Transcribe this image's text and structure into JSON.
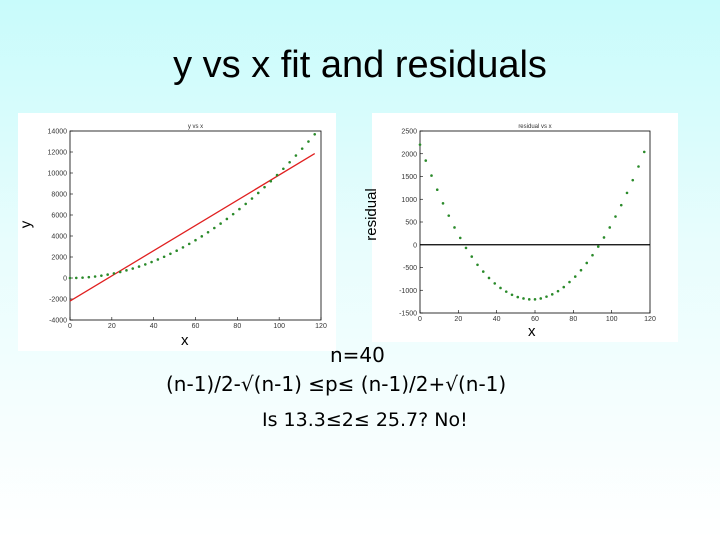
{
  "slide": {
    "title": "y vs x fit  and residuals",
    "lines": {
      "n": "n=40",
      "bounds": "(n-1)/2-√(n-1) ≤p≤ (n-1)/2+√(n-1)",
      "check": "Is 13.3≤2≤ 25.7?  No!"
    }
  },
  "colors": {
    "points": "#2a8a2a",
    "fit_line": "#e02020",
    "zero_line": "#000000",
    "axis": "#000000"
  },
  "chart_data": [
    {
      "type": "scatter",
      "title": "y vs x",
      "xlabel": "x",
      "ylabel": "y",
      "xlim": [
        0,
        120
      ],
      "ylim": [
        -4000,
        14000
      ],
      "xticks": [
        "0",
        "20",
        "40",
        "60",
        "80",
        "100",
        "120"
      ],
      "yticks": [
        "-4000",
        "-2000",
        "0",
        "2000",
        "4000",
        "6000",
        "8000",
        "10000",
        "12000",
        "14000"
      ],
      "grid": false,
      "points": {
        "x": [
          0,
          3,
          6,
          9,
          12,
          15,
          18,
          21,
          24,
          27,
          30,
          33,
          36,
          39,
          42,
          45,
          48,
          51,
          54,
          57,
          60,
          63,
          66,
          69,
          72,
          75,
          78,
          81,
          84,
          87,
          90,
          93,
          96,
          99,
          102,
          105,
          108,
          111,
          114,
          117
        ],
        "y": [
          0,
          9,
          36,
          81,
          144,
          225,
          324,
          441,
          576,
          729,
          900,
          1089,
          1296,
          1521,
          1764,
          2025,
          2304,
          2601,
          2916,
          3249,
          3600,
          3969,
          4356,
          4761,
          5184,
          5625,
          6084,
          6561,
          7056,
          7569,
          8100,
          8649,
          9216,
          9801,
          10404,
          11025,
          11664,
          12321,
          12996,
          13689
        ]
      },
      "fit_line": {
        "x": [
          0,
          117
        ],
        "y": [
          -2200,
          11850
        ]
      }
    },
    {
      "type": "scatter",
      "title": "residual vs x",
      "xlabel": "x",
      "ylabel": "residual",
      "xlim": [
        0,
        120
      ],
      "ylim": [
        -1500,
        2500
      ],
      "xticks": [
        "0",
        "20",
        "40",
        "60",
        "80",
        "100",
        "120"
      ],
      "yticks": [
        "-1500",
        "-1000",
        "-500",
        "0",
        "500",
        "1000",
        "1500",
        "2000",
        "2500"
      ],
      "grid": false,
      "zero_line": 0,
      "points": {
        "x": [
          0,
          3,
          6,
          9,
          12,
          15,
          18,
          21,
          24,
          27,
          30,
          33,
          36,
          39,
          42,
          45,
          48,
          51,
          54,
          57,
          60,
          63,
          66,
          69,
          72,
          75,
          78,
          81,
          84,
          87,
          90,
          93,
          96,
          99,
          102,
          105,
          108,
          111,
          114,
          117
        ],
        "y": [
          2200,
          1850,
          1520,
          1210,
          910,
          640,
          380,
          150,
          -70,
          -260,
          -440,
          -590,
          -730,
          -850,
          -950,
          -1030,
          -1100,
          -1150,
          -1180,
          -1200,
          -1200,
          -1180,
          -1140,
          -1090,
          -1020,
          -930,
          -820,
          -700,
          -560,
          -400,
          -230,
          -40,
          160,
          380,
          620,
          870,
          1140,
          1420,
          1720,
          2040
        ]
      }
    }
  ]
}
